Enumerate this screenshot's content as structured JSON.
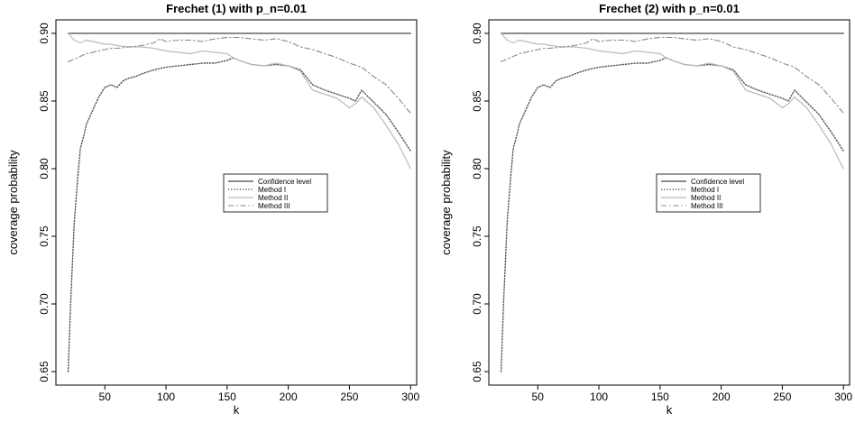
{
  "chart_data": [
    {
      "type": "line",
      "title": "Frechet (1) with p_n=0.01",
      "xlabel": "k",
      "ylabel": "coverage probability",
      "xlim": [
        10,
        305
      ],
      "ylim": [
        0.64,
        0.91
      ],
      "xticks": [
        50,
        100,
        150,
        200,
        250,
        300
      ],
      "yticks": [
        0.65,
        0.7,
        0.75,
        0.8,
        0.85,
        0.9
      ],
      "legend": {
        "placement": "center-right",
        "entries": [
          "Confidence level",
          "Method I",
          "Method II",
          "Method III"
        ]
      },
      "series": [
        {
          "name": "Confidence level",
          "style": "solid",
          "color": "#666666",
          "x": [
            20,
            300
          ],
          "y": [
            0.9,
            0.9
          ]
        },
        {
          "name": "Method I",
          "style": "dotted",
          "color": "#555555",
          "x": [
            20,
            22,
            25,
            28,
            30,
            33,
            35,
            40,
            45,
            50,
            55,
            60,
            65,
            70,
            75,
            80,
            90,
            100,
            110,
            120,
            130,
            140,
            150,
            155,
            160,
            170,
            180,
            190,
            200,
            210,
            220,
            230,
            240,
            250,
            255,
            260,
            270,
            280,
            290,
            300
          ],
          "y": [
            0.65,
            0.7,
            0.76,
            0.795,
            0.815,
            0.825,
            0.833,
            0.843,
            0.853,
            0.86,
            0.862,
            0.86,
            0.865,
            0.867,
            0.868,
            0.87,
            0.873,
            0.875,
            0.876,
            0.877,
            0.878,
            0.878,
            0.88,
            0.882,
            0.88,
            0.877,
            0.876,
            0.877,
            0.876,
            0.873,
            0.862,
            0.858,
            0.855,
            0.852,
            0.85,
            0.858,
            0.849,
            0.84,
            0.827,
            0.813
          ]
        },
        {
          "name": "Method II",
          "style": "solid",
          "color": "#bbbbbb",
          "x": [
            20,
            25,
            30,
            35,
            40,
            45,
            50,
            55,
            60,
            70,
            80,
            90,
            100,
            110,
            120,
            130,
            140,
            150,
            155,
            160,
            170,
            180,
            190,
            200,
            210,
            220,
            230,
            240,
            250,
            255,
            260,
            270,
            280,
            290,
            300
          ],
          "y": [
            0.9,
            0.895,
            0.893,
            0.895,
            0.894,
            0.893,
            0.892,
            0.892,
            0.891,
            0.89,
            0.89,
            0.889,
            0.887,
            0.886,
            0.885,
            0.887,
            0.886,
            0.885,
            0.882,
            0.88,
            0.877,
            0.876,
            0.878,
            0.876,
            0.872,
            0.858,
            0.855,
            0.852,
            0.845,
            0.848,
            0.853,
            0.845,
            0.832,
            0.818,
            0.8
          ]
        },
        {
          "name": "Method III",
          "style": "dashdot",
          "color": "#888888",
          "x": [
            20,
            25,
            30,
            35,
            40,
            45,
            50,
            55,
            60,
            70,
            80,
            90,
            95,
            100,
            110,
            120,
            130,
            140,
            150,
            160,
            170,
            180,
            190,
            200,
            210,
            220,
            230,
            240,
            250,
            260,
            270,
            280,
            290,
            300
          ],
          "y": [
            0.879,
            0.881,
            0.883,
            0.885,
            0.886,
            0.887,
            0.888,
            0.889,
            0.889,
            0.89,
            0.891,
            0.893,
            0.896,
            0.894,
            0.895,
            0.895,
            0.894,
            0.896,
            0.897,
            0.897,
            0.896,
            0.895,
            0.896,
            0.894,
            0.89,
            0.888,
            0.885,
            0.882,
            0.878,
            0.875,
            0.868,
            0.862,
            0.852,
            0.841
          ]
        }
      ]
    },
    {
      "type": "line",
      "title": "Frechet (2) with p_n=0.01",
      "xlabel": "k",
      "ylabel": "coverage probability",
      "xlim": [
        10,
        305
      ],
      "ylim": [
        0.64,
        0.91
      ],
      "xticks": [
        50,
        100,
        150,
        200,
        250,
        300
      ],
      "yticks": [
        0.65,
        0.7,
        0.75,
        0.8,
        0.85,
        0.9
      ],
      "legend": {
        "placement": "center-right",
        "entries": [
          "Confidence level",
          "Method I",
          "Method II",
          "Method III"
        ]
      },
      "series": [
        {
          "name": "Confidence level",
          "style": "solid",
          "color": "#666666",
          "x": [
            20,
            300
          ],
          "y": [
            0.9,
            0.9
          ]
        },
        {
          "name": "Method I",
          "style": "dotted",
          "color": "#555555",
          "x": [
            20,
            22,
            25,
            28,
            30,
            33,
            35,
            40,
            45,
            50,
            55,
            60,
            65,
            70,
            75,
            80,
            90,
            100,
            110,
            120,
            130,
            140,
            150,
            155,
            160,
            170,
            180,
            190,
            200,
            210,
            220,
            230,
            240,
            250,
            255,
            260,
            270,
            280,
            290,
            300
          ],
          "y": [
            0.65,
            0.7,
            0.76,
            0.795,
            0.815,
            0.825,
            0.833,
            0.843,
            0.853,
            0.86,
            0.862,
            0.86,
            0.865,
            0.867,
            0.868,
            0.87,
            0.873,
            0.875,
            0.876,
            0.877,
            0.878,
            0.878,
            0.88,
            0.882,
            0.88,
            0.877,
            0.876,
            0.877,
            0.876,
            0.873,
            0.862,
            0.858,
            0.855,
            0.852,
            0.85,
            0.858,
            0.849,
            0.84,
            0.827,
            0.813
          ]
        },
        {
          "name": "Method II",
          "style": "solid",
          "color": "#bbbbbb",
          "x": [
            20,
            25,
            30,
            35,
            40,
            45,
            50,
            55,
            60,
            70,
            80,
            90,
            100,
            110,
            120,
            130,
            140,
            150,
            155,
            160,
            170,
            180,
            190,
            200,
            210,
            220,
            230,
            240,
            250,
            255,
            260,
            270,
            280,
            290,
            300
          ],
          "y": [
            0.9,
            0.895,
            0.893,
            0.895,
            0.894,
            0.893,
            0.892,
            0.892,
            0.891,
            0.89,
            0.89,
            0.889,
            0.887,
            0.886,
            0.885,
            0.887,
            0.886,
            0.885,
            0.882,
            0.88,
            0.877,
            0.876,
            0.878,
            0.876,
            0.872,
            0.858,
            0.855,
            0.852,
            0.845,
            0.848,
            0.853,
            0.845,
            0.832,
            0.818,
            0.8
          ]
        },
        {
          "name": "Method III",
          "style": "dashdot",
          "color": "#888888",
          "x": [
            20,
            25,
            30,
            35,
            40,
            45,
            50,
            55,
            60,
            70,
            80,
            90,
            95,
            100,
            110,
            120,
            130,
            140,
            150,
            160,
            170,
            180,
            190,
            200,
            210,
            220,
            230,
            240,
            250,
            260,
            270,
            280,
            290,
            300
          ],
          "y": [
            0.879,
            0.881,
            0.883,
            0.885,
            0.886,
            0.887,
            0.888,
            0.889,
            0.889,
            0.89,
            0.891,
            0.893,
            0.896,
            0.894,
            0.895,
            0.895,
            0.894,
            0.896,
            0.897,
            0.897,
            0.896,
            0.895,
            0.896,
            0.894,
            0.89,
            0.888,
            0.885,
            0.882,
            0.878,
            0.875,
            0.868,
            0.862,
            0.852,
            0.841
          ]
        }
      ]
    }
  ]
}
